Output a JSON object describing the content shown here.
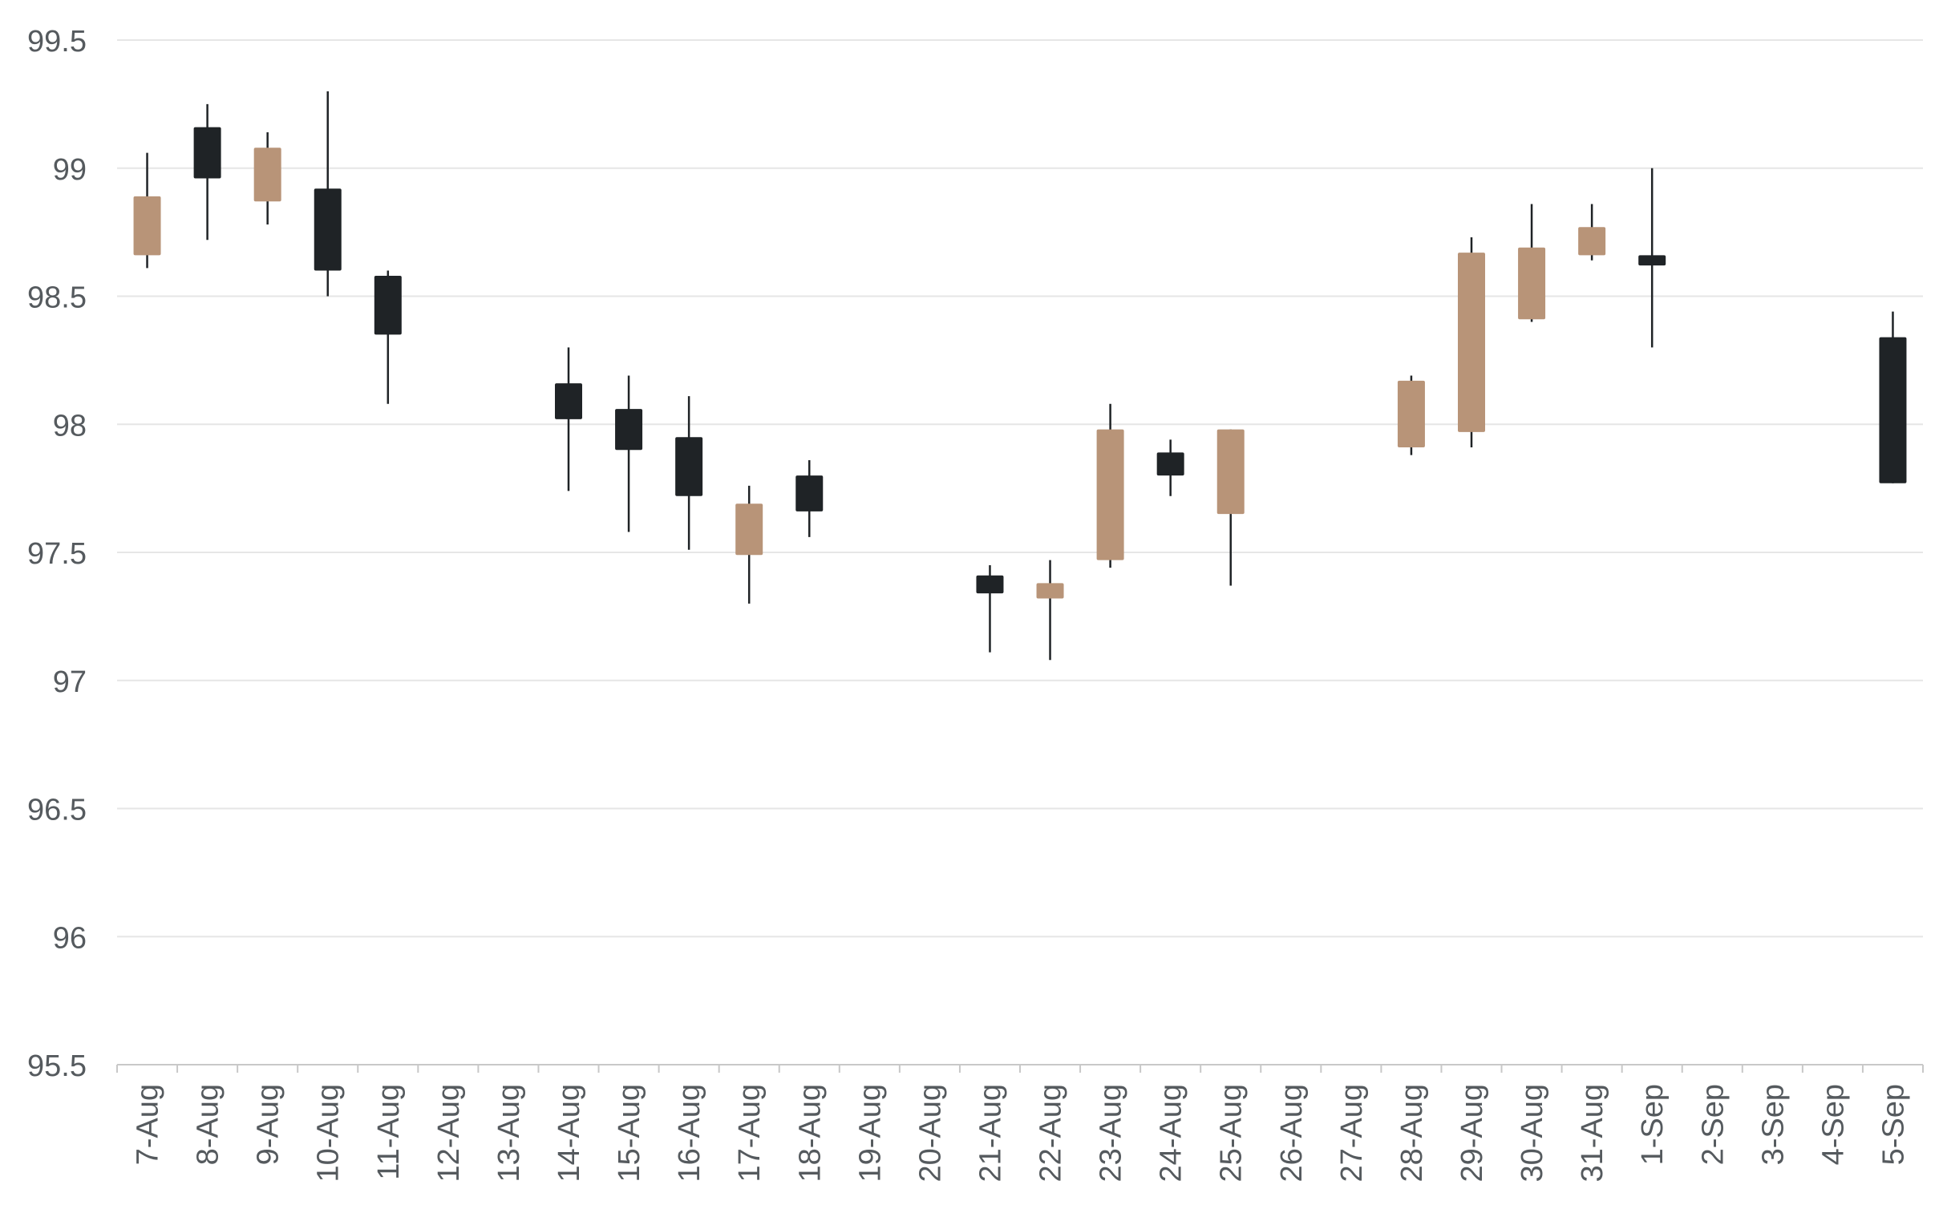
{
  "chart_data": {
    "type": "candlestick",
    "title": "",
    "xlabel": "",
    "ylabel": "",
    "ylim": [
      95.5,
      99.5
    ],
    "y_ticks": [
      "95.5",
      "96",
      "96.5",
      "97",
      "97.5",
      "98",
      "98.5",
      "99",
      "99.5"
    ],
    "grid": true,
    "colors": {
      "up": "#b89478",
      "down": "#1f2326",
      "grid": "#e6e6e6",
      "axis": "#c8c8c8",
      "text": "#555a5e"
    },
    "categories": [
      "7-Aug",
      "8-Aug",
      "9-Aug",
      "10-Aug",
      "11-Aug",
      "12-Aug",
      "13-Aug",
      "14-Aug",
      "15-Aug",
      "16-Aug",
      "17-Aug",
      "18-Aug",
      "19-Aug",
      "20-Aug",
      "21-Aug",
      "22-Aug",
      "23-Aug",
      "24-Aug",
      "25-Aug",
      "26-Aug",
      "27-Aug",
      "28-Aug",
      "29-Aug",
      "30-Aug",
      "31-Aug",
      "1-Sep",
      "2-Sep",
      "3-Sep",
      "4-Sep",
      "5-Sep"
    ],
    "candles": [
      {
        "date": "7-Aug",
        "open": 98.66,
        "high": 99.06,
        "low": 98.61,
        "close": 98.89
      },
      {
        "date": "8-Aug",
        "open": 99.16,
        "high": 99.25,
        "low": 98.72,
        "close": 98.96
      },
      {
        "date": "9-Aug",
        "open": 98.87,
        "high": 99.14,
        "low": 98.78,
        "close": 99.08
      },
      {
        "date": "10-Aug",
        "open": 98.92,
        "high": 99.3,
        "low": 98.5,
        "close": 98.6
      },
      {
        "date": "11-Aug",
        "open": 98.58,
        "high": 98.6,
        "low": 98.08,
        "close": 98.35
      },
      {
        "date": "14-Aug",
        "open": 98.16,
        "high": 98.3,
        "low": 97.74,
        "close": 98.02
      },
      {
        "date": "15-Aug",
        "open": 98.06,
        "high": 98.19,
        "low": 97.58,
        "close": 97.9
      },
      {
        "date": "16-Aug",
        "open": 97.95,
        "high": 98.11,
        "low": 97.51,
        "close": 97.72
      },
      {
        "date": "17-Aug",
        "open": 97.49,
        "high": 97.76,
        "low": 97.3,
        "close": 97.69
      },
      {
        "date": "18-Aug",
        "open": 97.8,
        "high": 97.86,
        "low": 97.56,
        "close": 97.66
      },
      {
        "date": "21-Aug",
        "open": 97.41,
        "high": 97.45,
        "low": 97.11,
        "close": 97.34
      },
      {
        "date": "22-Aug",
        "open": 97.32,
        "high": 97.47,
        "low": 97.08,
        "close": 97.38
      },
      {
        "date": "23-Aug",
        "open": 97.47,
        "high": 98.08,
        "low": 97.44,
        "close": 97.98
      },
      {
        "date": "24-Aug",
        "open": 97.89,
        "high": 97.94,
        "low": 97.72,
        "close": 97.8
      },
      {
        "date": "25-Aug",
        "open": 97.65,
        "high": 97.98,
        "low": 97.37,
        "close": 97.98
      },
      {
        "date": "28-Aug",
        "open": 97.91,
        "high": 98.19,
        "low": 97.88,
        "close": 98.17
      },
      {
        "date": "29-Aug",
        "open": 97.97,
        "high": 98.73,
        "low": 97.91,
        "close": 98.67
      },
      {
        "date": "30-Aug",
        "open": 98.41,
        "high": 98.86,
        "low": 98.4,
        "close": 98.69
      },
      {
        "date": "31-Aug",
        "open": 98.66,
        "high": 98.86,
        "low": 98.64,
        "close": 98.77
      },
      {
        "date": "1-Sep",
        "open": 98.66,
        "high": 99.0,
        "low": 98.3,
        "close": 98.62
      },
      {
        "date": "5-Sep",
        "open": 98.34,
        "high": 98.44,
        "low": 97.77,
        "close": 97.77
      }
    ]
  }
}
